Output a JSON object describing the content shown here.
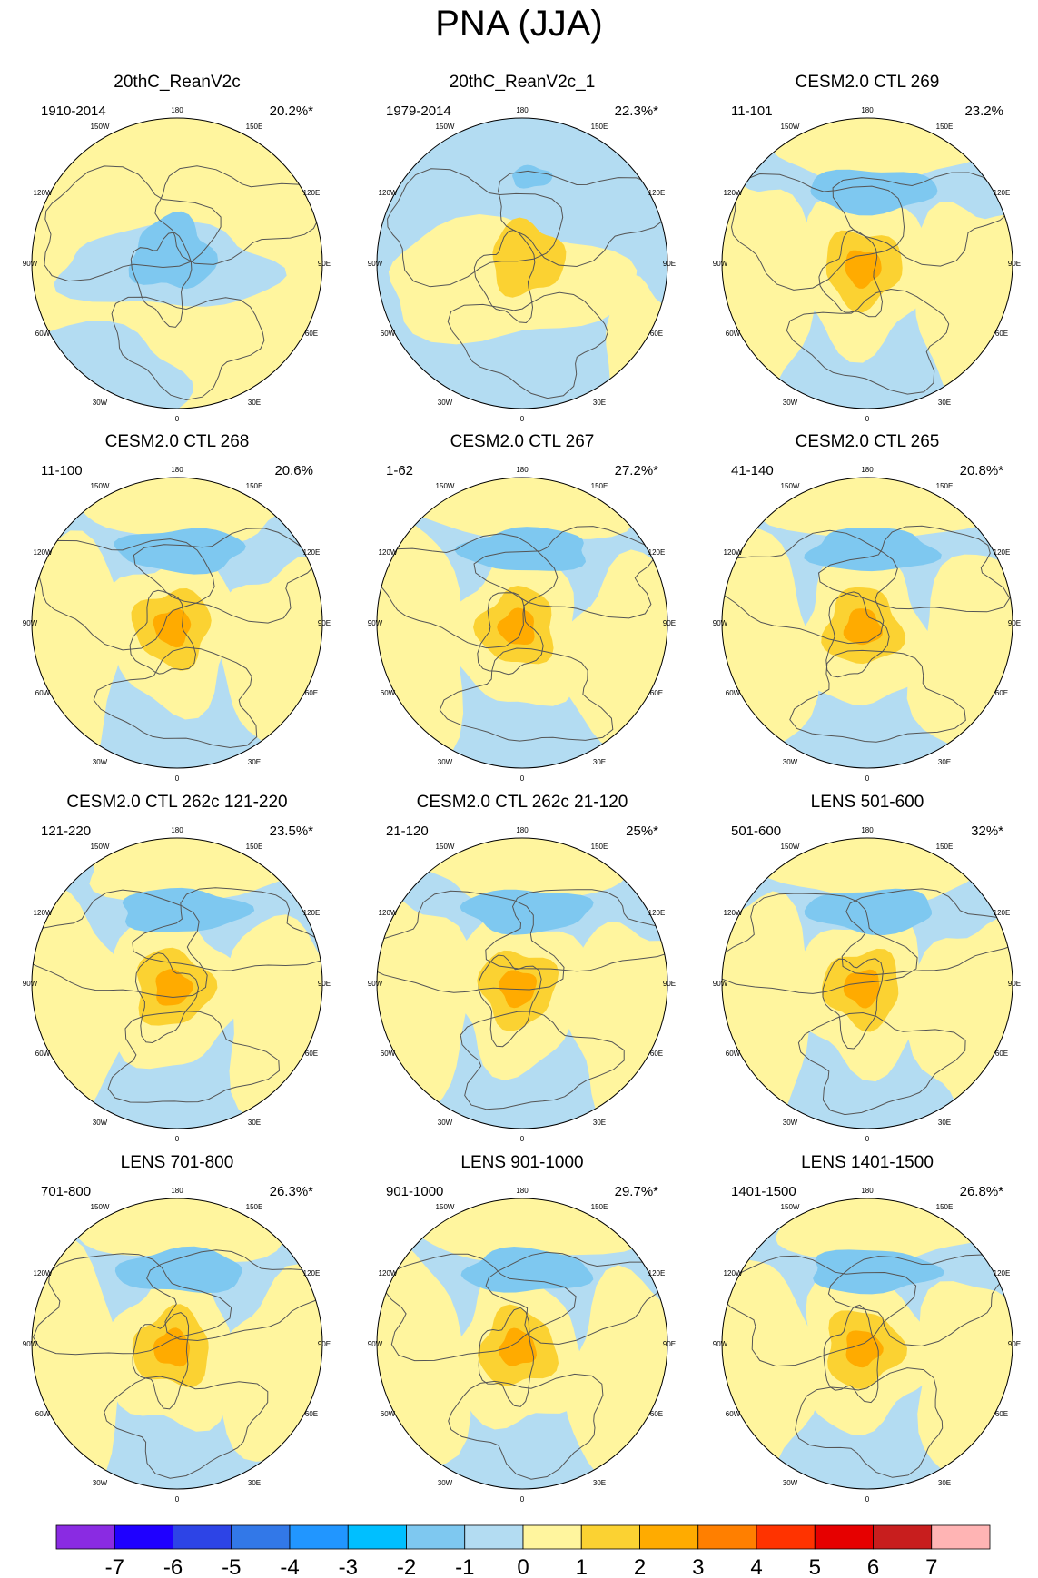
{
  "title": "PNA (JJA)",
  "colors": {
    "ocean_coast": "#555555",
    "levels": [
      "#8a2be2",
      "#1f00ff",
      "#2d44e6",
      "#3278e8",
      "#2196ff",
      "#00bfff",
      "#7ec8f0",
      "#b3dcf2",
      "#fff59e",
      "#fbd232",
      "#ffab00",
      "#ff7f00",
      "#ff3300",
      "#e60000",
      "#c81e1e",
      "#ffb4b4"
    ]
  },
  "longitude_labels": [
    "180",
    "150W",
    "150E",
    "120W",
    "120E",
    "90W",
    "90E",
    "60W",
    "60E",
    "30W",
    "30E",
    "0"
  ],
  "chart_data": [
    {
      "type": "map",
      "title": "20thC_ReanV2c",
      "period": "1910-2014",
      "variance_explained": "20.2%*",
      "pattern": "A"
    },
    {
      "type": "map",
      "title": "20thC_ReanV2c_1",
      "period": "1979-2014",
      "variance_explained": "22.3%*",
      "pattern": "B"
    },
    {
      "type": "map",
      "title": "CESM2.0 CTL 269",
      "period": "11-101",
      "variance_explained": "23.2%",
      "pattern": "C"
    },
    {
      "type": "map",
      "title": "CESM2.0 CTL 268",
      "period": "11-100",
      "variance_explained": "20.6%",
      "pattern": "C"
    },
    {
      "type": "map",
      "title": "CESM2.0 CTL 267",
      "period": "1-62",
      "variance_explained": "27.2%*",
      "pattern": "C"
    },
    {
      "type": "map",
      "title": "CESM2.0 CTL 265",
      "period": "41-140",
      "variance_explained": "20.8%*",
      "pattern": "C"
    },
    {
      "type": "map",
      "title": "CESM2.0 CTL 262c 121-220",
      "period": "121-220",
      "variance_explained": "23.5%*",
      "pattern": "C"
    },
    {
      "type": "map",
      "title": "CESM2.0 CTL 262c 21-120",
      "period": "21-120",
      "variance_explained": "25%*",
      "pattern": "C"
    },
    {
      "type": "map",
      "title": "LENS 501-600",
      "period": "501-600",
      "variance_explained": "32%*",
      "pattern": "C"
    },
    {
      "type": "map",
      "title": "LENS 701-800",
      "period": "701-800",
      "variance_explained": "26.3%*",
      "pattern": "C"
    },
    {
      "type": "map",
      "title": "LENS 901-1000",
      "period": "901-1000",
      "variance_explained": "29.7%*",
      "pattern": "C"
    },
    {
      "type": "map",
      "title": "LENS 1401-1500",
      "period": "1401-1500",
      "variance_explained": "26.8%*",
      "pattern": "C"
    }
  ],
  "colorbar": {
    "labels": [
      "-7",
      "-6",
      "-5",
      "-4",
      "-3",
      "-2",
      "-1",
      "0",
      "1",
      "2",
      "3",
      "4",
      "5",
      "6",
      "7"
    ]
  }
}
